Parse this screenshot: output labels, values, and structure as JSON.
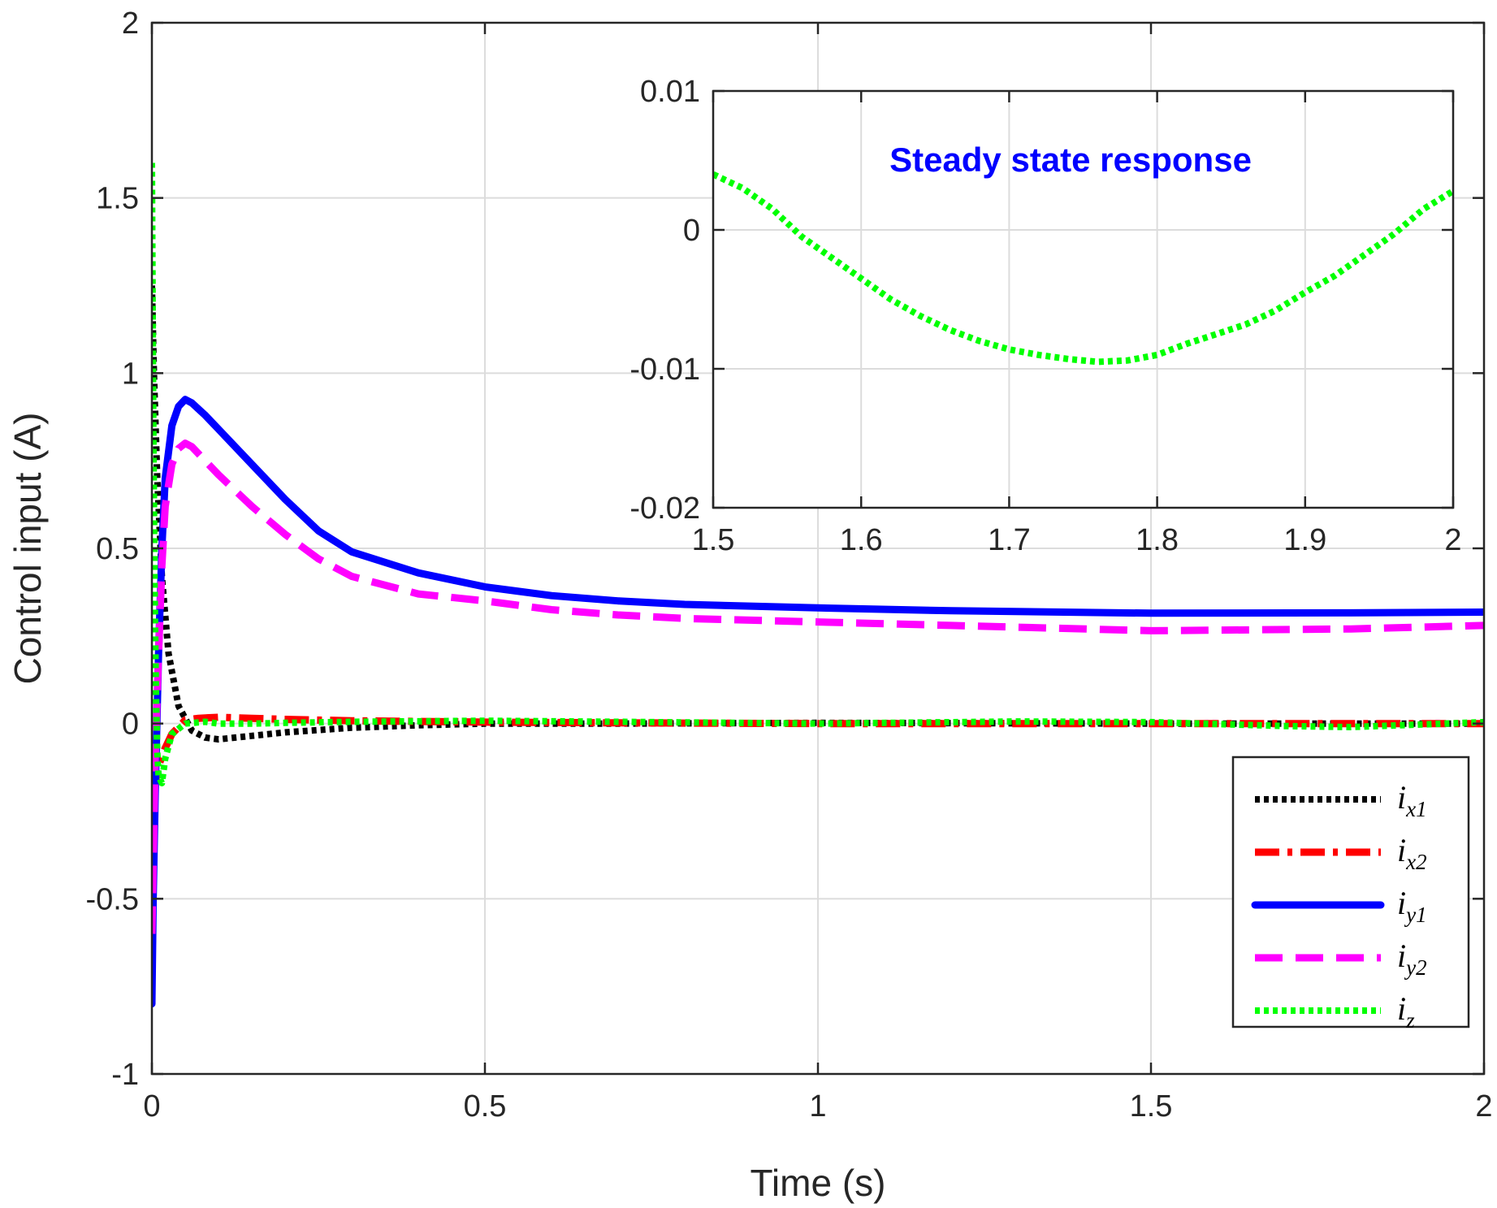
{
  "chart_data": [
    {
      "type": "line",
      "xlabel": "Time (s)",
      "ylabel": "Control input (A)",
      "xlim": [
        0,
        2
      ],
      "ylim": [
        -1,
        2
      ],
      "x_ticks": [
        "0",
        "0.5",
        "1",
        "1.5",
        "2"
      ],
      "y_ticks": [
        "-1",
        "-0.5",
        "0",
        "0.5",
        "1",
        "1.5",
        "2"
      ],
      "grid": true,
      "legend_position": "bottom-right",
      "series": [
        {
          "name": "ix1",
          "label_main": "i",
          "label_sub": "x1",
          "color": "#000000",
          "style": "dotted",
          "x": [
            0,
            0.003,
            0.008,
            0.015,
            0.025,
            0.04,
            0.06,
            0.08,
            0.1,
            0.15,
            0.2,
            0.3,
            0.4,
            0.5,
            0.7,
            1.0,
            1.5,
            2.0
          ],
          "y": [
            1.25,
            1.0,
            0.7,
            0.42,
            0.2,
            0.05,
            -0.02,
            -0.04,
            -0.045,
            -0.035,
            -0.025,
            -0.012,
            -0.005,
            0.0,
            0.0,
            0.002,
            0.0,
            0.0
          ]
        },
        {
          "name": "ix2",
          "label_main": "i",
          "label_sub": "x2",
          "color": "#ff0000",
          "style": "dashdot",
          "x": [
            0,
            0.005,
            0.01,
            0.02,
            0.03,
            0.05,
            0.07,
            0.1,
            0.15,
            0.2,
            0.3,
            0.5,
            0.7,
            1.0,
            1.5,
            2.0
          ],
          "y": [
            -0.2,
            -0.17,
            -0.12,
            -0.07,
            -0.03,
            0.01,
            0.015,
            0.018,
            0.015,
            0.012,
            0.008,
            0.004,
            0.002,
            0.0,
            0.0,
            0.0
          ]
        },
        {
          "name": "iy1",
          "label_main": "i",
          "label_sub": "y1",
          "color": "#0000ff",
          "style": "solid",
          "x": [
            0,
            0.002,
            0.005,
            0.01,
            0.015,
            0.02,
            0.03,
            0.04,
            0.05,
            0.06,
            0.08,
            0.1,
            0.15,
            0.2,
            0.25,
            0.3,
            0.4,
            0.5,
            0.6,
            0.7,
            0.8,
            1.0,
            1.2,
            1.5,
            1.8,
            2.0
          ],
          "y": [
            -0.8,
            -0.5,
            -0.2,
            0.2,
            0.5,
            0.7,
            0.85,
            0.905,
            0.925,
            0.915,
            0.88,
            0.84,
            0.74,
            0.64,
            0.55,
            0.49,
            0.43,
            0.39,
            0.365,
            0.35,
            0.34,
            0.33,
            0.322,
            0.315,
            0.316,
            0.318
          ]
        },
        {
          "name": "iy2",
          "label_main": "i",
          "label_sub": "y2",
          "color": "#ff00ff",
          "style": "dashed",
          "x": [
            0,
            0.002,
            0.005,
            0.01,
            0.015,
            0.02,
            0.03,
            0.04,
            0.05,
            0.06,
            0.08,
            0.1,
            0.15,
            0.2,
            0.25,
            0.3,
            0.4,
            0.5,
            0.6,
            0.7,
            0.8,
            1.0,
            1.2,
            1.5,
            1.8,
            2.0
          ],
          "y": [
            -0.6,
            -0.4,
            -0.1,
            0.2,
            0.45,
            0.62,
            0.74,
            0.785,
            0.8,
            0.79,
            0.75,
            0.71,
            0.62,
            0.54,
            0.47,
            0.42,
            0.37,
            0.35,
            0.325,
            0.31,
            0.3,
            0.29,
            0.28,
            0.265,
            0.27,
            0.28
          ]
        },
        {
          "name": "iz",
          "label_main": "i",
          "label_sub": "z",
          "color": "#00ff00",
          "style": "dotted",
          "x": [
            0,
            0.002,
            0.004,
            0.006,
            0.008,
            0.01,
            0.015,
            0.02,
            0.03,
            0.05,
            0.08,
            0.1,
            0.15,
            0.2,
            0.3,
            0.5,
            0.7,
            1.0,
            1.3,
            1.5,
            1.7,
            1.8,
            1.9,
            2.0
          ],
          "y": [
            1.6,
            0.9,
            0.4,
            0.1,
            -0.08,
            -0.15,
            -0.17,
            -0.1,
            -0.03,
            0.0,
            0.005,
            0.0,
            0.0,
            0.002,
            0.005,
            0.008,
            0.005,
            0.0,
            0.006,
            0.004,
            -0.007,
            -0.01,
            -0.003,
            0.004
          ]
        }
      ]
    },
    {
      "type": "line",
      "title": "Steady state response",
      "title_color": "#0000ff",
      "xlim": [
        1.5,
        2
      ],
      "ylim": [
        -0.02,
        0.01
      ],
      "x_ticks": [
        "1.5",
        "1.6",
        "1.7",
        "1.8",
        "1.9",
        "2"
      ],
      "y_ticks": [
        "-0.02",
        "-0.01",
        "0",
        "0.01"
      ],
      "grid": true,
      "series": [
        {
          "name": "iz",
          "color": "#00ff00",
          "style": "dotted",
          "x": [
            1.5,
            1.52,
            1.54,
            1.56,
            1.58,
            1.6,
            1.62,
            1.64,
            1.66,
            1.68,
            1.7,
            1.72,
            1.74,
            1.76,
            1.78,
            1.8,
            1.82,
            1.84,
            1.86,
            1.88,
            1.9,
            1.92,
            1.94,
            1.96,
            1.98,
            2.0
          ],
          "y": [
            0.004,
            0.003,
            0.0015,
            -0.0005,
            -0.002,
            -0.0035,
            -0.005,
            -0.0062,
            -0.0072,
            -0.008,
            -0.0086,
            -0.009,
            -0.0093,
            -0.0095,
            -0.0094,
            -0.009,
            -0.0082,
            -0.0075,
            -0.0068,
            -0.0058,
            -0.0045,
            -0.0033,
            -0.0018,
            -0.0003,
            0.0015,
            0.0028
          ]
        }
      ]
    }
  ]
}
